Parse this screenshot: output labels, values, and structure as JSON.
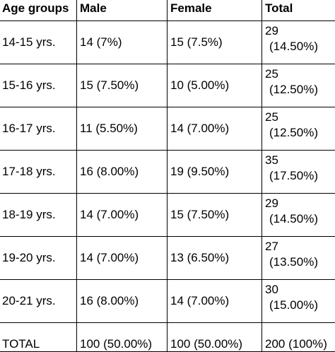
{
  "table": {
    "headers": [
      "Age groups",
      "Male",
      "Female",
      "Total"
    ],
    "rows": [
      {
        "age": "14-15 yrs.",
        "male": "14 (7%)",
        "female": "15 (7.5%)",
        "total_n": "29",
        "total_pct": "(14.50%)"
      },
      {
        "age": "15-16 yrs.",
        "male": "15 (7.50%)",
        "female": "10 (5.00%)",
        "total_n": "25",
        "total_pct": "(12.50%)"
      },
      {
        "age": "16-17 yrs.",
        "male": "11 (5.50%)",
        "female": "14 (7.00%)",
        "total_n": "25",
        "total_pct": "(12.50%)"
      },
      {
        "age": "17-18 yrs.",
        "male": "16 (8.00%)",
        "female": "19 (9.50%)",
        "total_n": "35",
        "total_pct": "(17.50%)"
      },
      {
        "age": "18-19 yrs.",
        "male": "14 (7.00%)",
        "female": "15 (7.50%)",
        "total_n": "29",
        "total_pct": "(14.50%)"
      },
      {
        "age": "19-20 yrs.",
        "male": "14 (7.00%)",
        "female": "13 (6.50%)",
        "total_n": "27",
        "total_pct": "(13.50%)"
      },
      {
        "age": "20-21 yrs.",
        "male": "16 (8.00%)",
        "female": "14 (7.00%)",
        "total_n": "30",
        "total_pct": "(15.00%)"
      }
    ],
    "total_row": {
      "label": "TOTAL",
      "male": "100 (50.00%)",
      "female": "100 (50.00%)",
      "total": "200 (100%)"
    }
  }
}
